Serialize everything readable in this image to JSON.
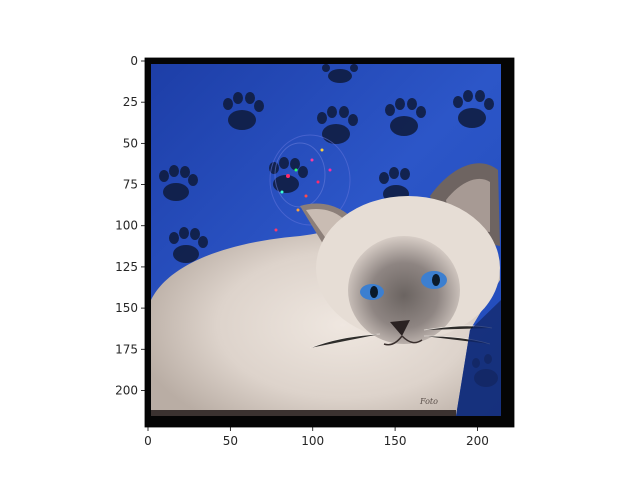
{
  "image": {
    "subject": "cat",
    "axes": {
      "x": {
        "ticks": [
          0,
          50,
          100,
          150,
          200
        ],
        "lim": [
          0,
          224
        ]
      },
      "y": {
        "ticks": [
          0,
          25,
          50,
          75,
          100,
          125,
          150,
          175,
          200
        ],
        "lim": [
          0,
          224
        ],
        "inverted": true
      }
    },
    "watermark": "Foto"
  }
}
